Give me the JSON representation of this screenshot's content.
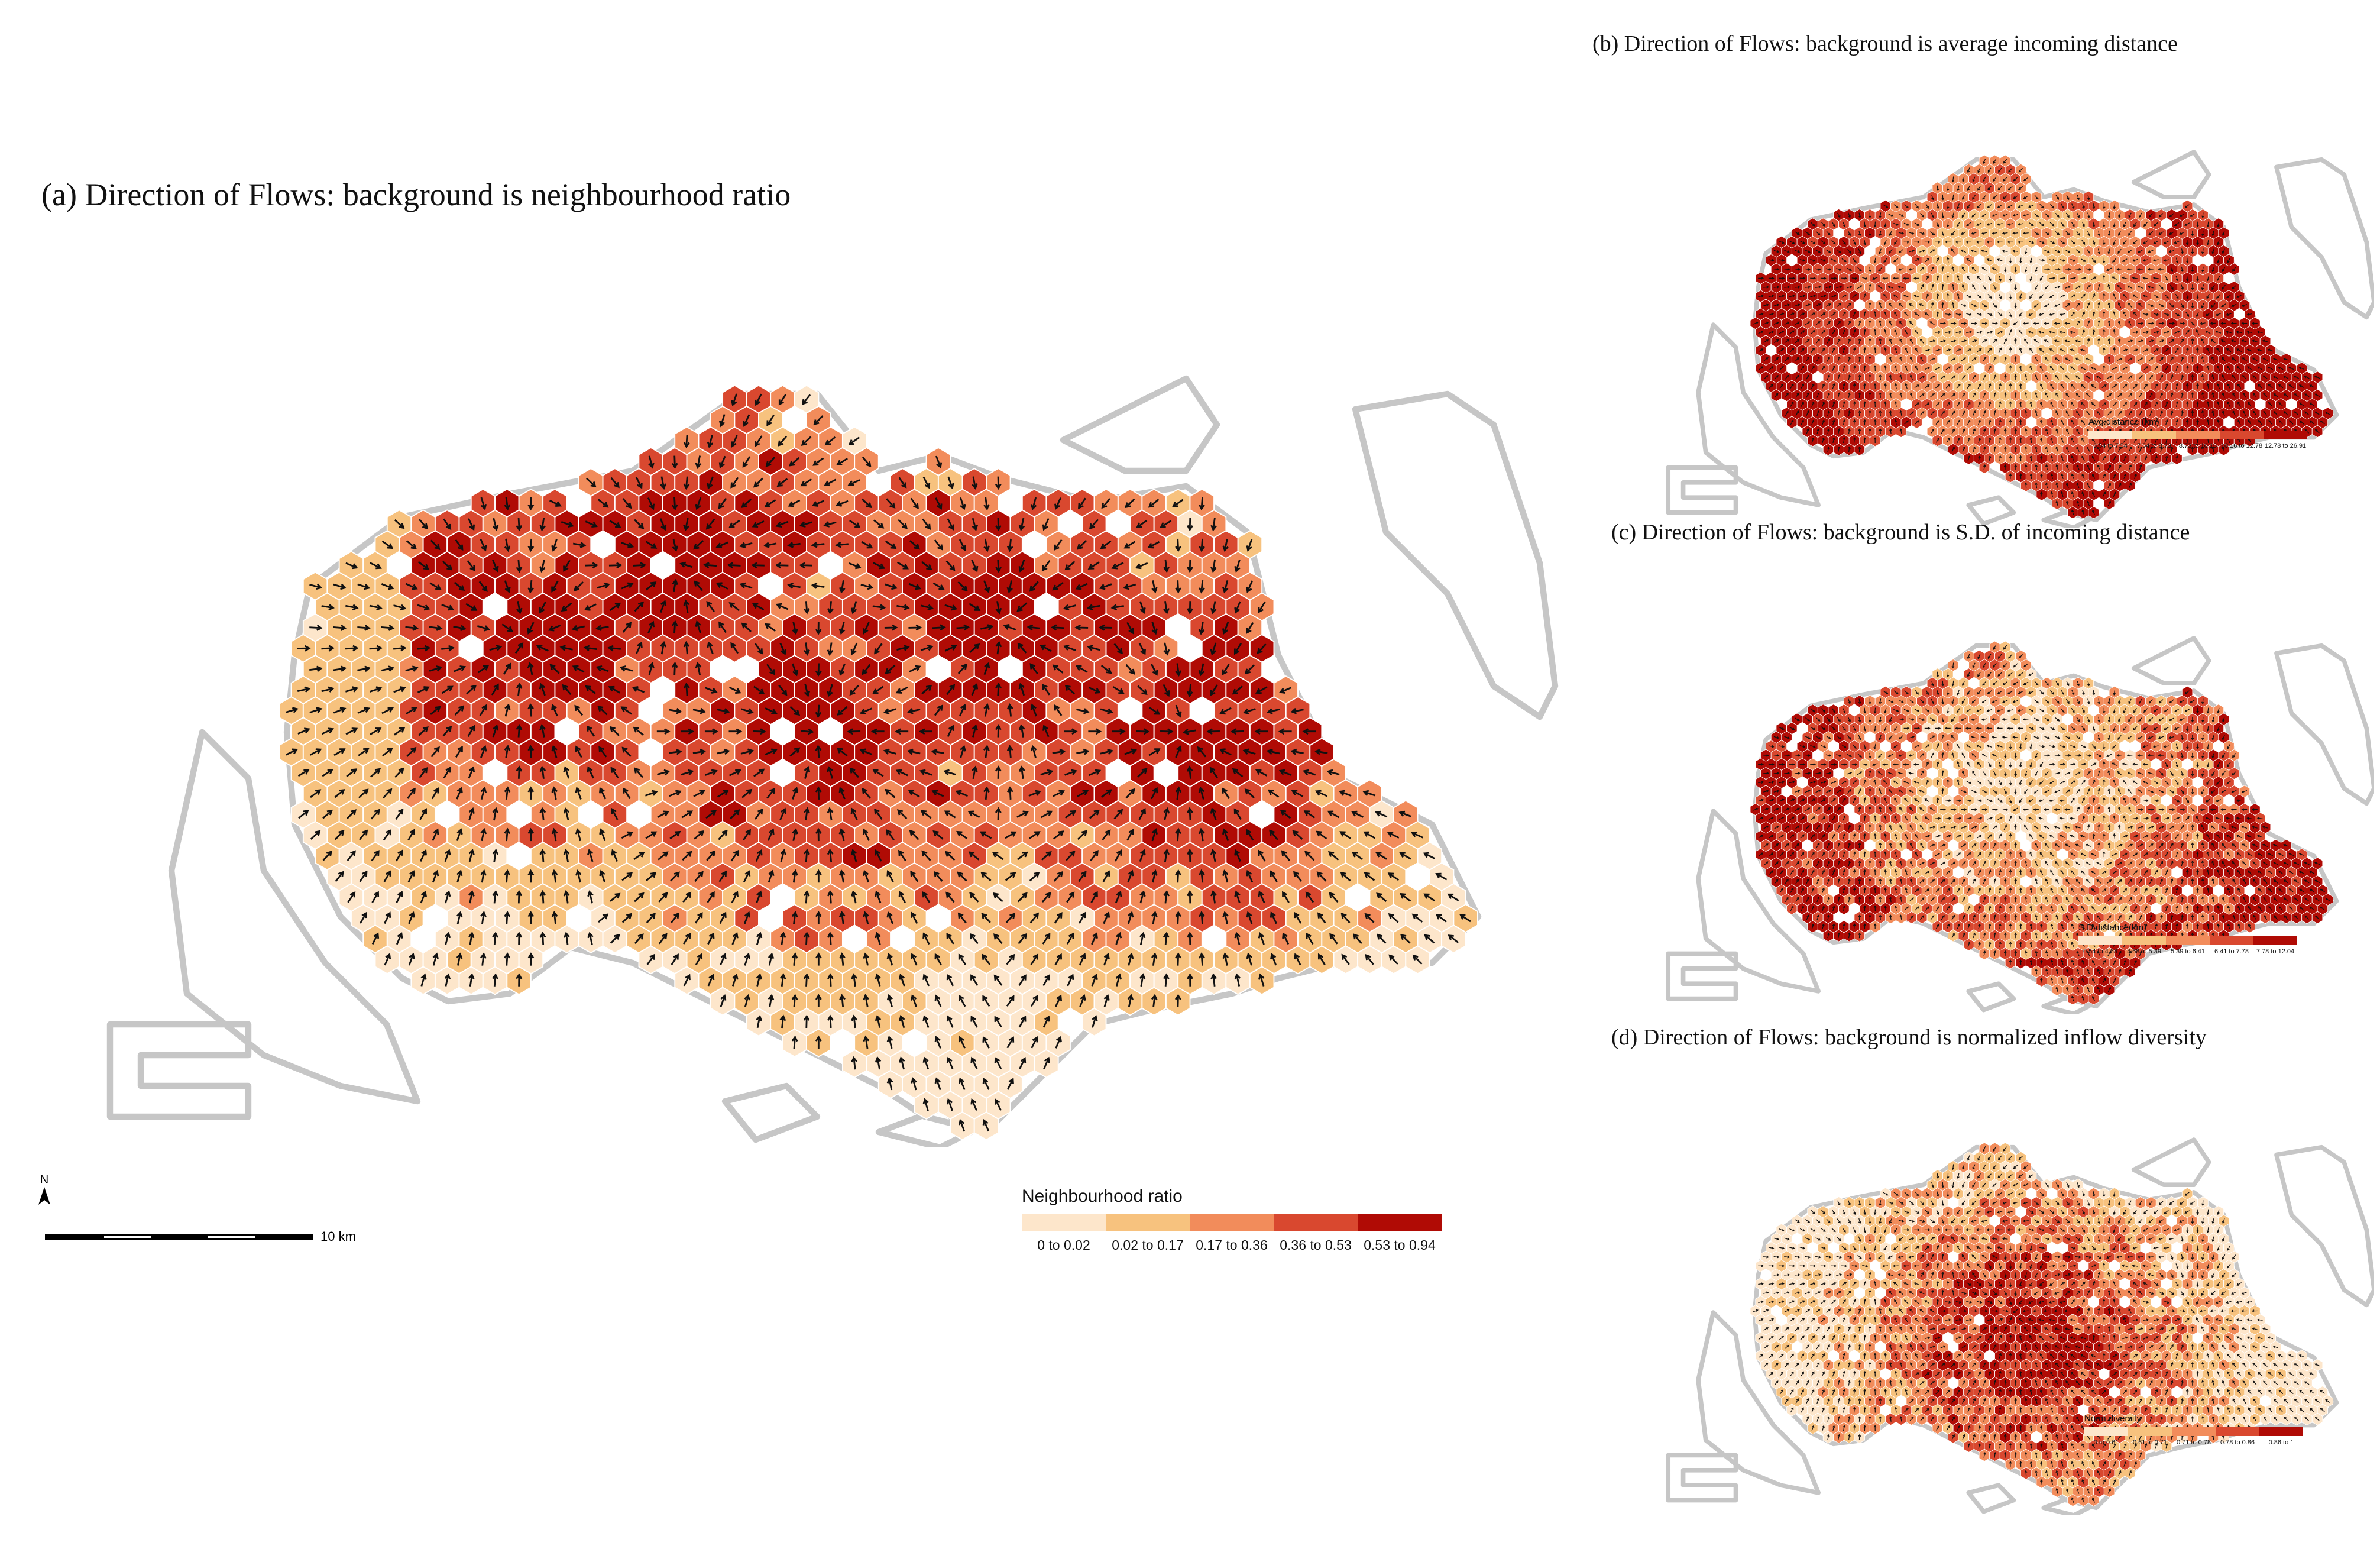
{
  "figure": {
    "panels": [
      {
        "id": "a",
        "title": "(a) Direction of Flows: background is neighbourhood ratio",
        "legend": {
          "title": "Neighbourhood ratio",
          "classes": [
            "0 to 0.02",
            "0.02 to 0.17",
            "0.17 to 0.36",
            "0.36 to 0.53",
            "0.53 to 0.94"
          ]
        }
      },
      {
        "id": "b",
        "title": "(b) Direction of Flows: background is average incoming distance",
        "legend": {
          "title": "Avg.distance (km)",
          "classes": [
            "3.54 to 7.54",
            "7.54 to 8.73",
            "8.73 to 10.16",
            "10.16 to 12.78",
            "12.78 to 26.91"
          ]
        }
      },
      {
        "id": "c",
        "title": "(c) Direction of Flows: background is S.D. of incoming distance",
        "legend": {
          "title": "S.D.distance(km)",
          "classes": [
            "0.54 to 4.68",
            "4.68 to 5.39",
            "5.39 to 6.41",
            "6.41 to 7.78",
            "7.78 to 12.04"
          ]
        }
      },
      {
        "id": "d",
        "title": "(d) Direction of Flows: background is normalized inflow diversity",
        "legend": {
          "title": "Norm.diversity",
          "classes": [
            "0 to 0.61",
            "0.61 to 0.71",
            "0.71 to 0.78",
            "0.78 to 0.86",
            "0.86 to 1"
          ]
        }
      }
    ],
    "palette": [
      "#fde6cb",
      "#f7c27e",
      "#f28c5b",
      "#d9482f",
      "#b00b05"
    ],
    "north_arrow": "N",
    "scale_bar_label": "10 km",
    "colors": {
      "coastline": "#c6c6c6",
      "arrow": "#111111",
      "background": "#ffffff"
    },
    "icons": [
      "north-arrow-icon",
      "scale-bar"
    ]
  }
}
